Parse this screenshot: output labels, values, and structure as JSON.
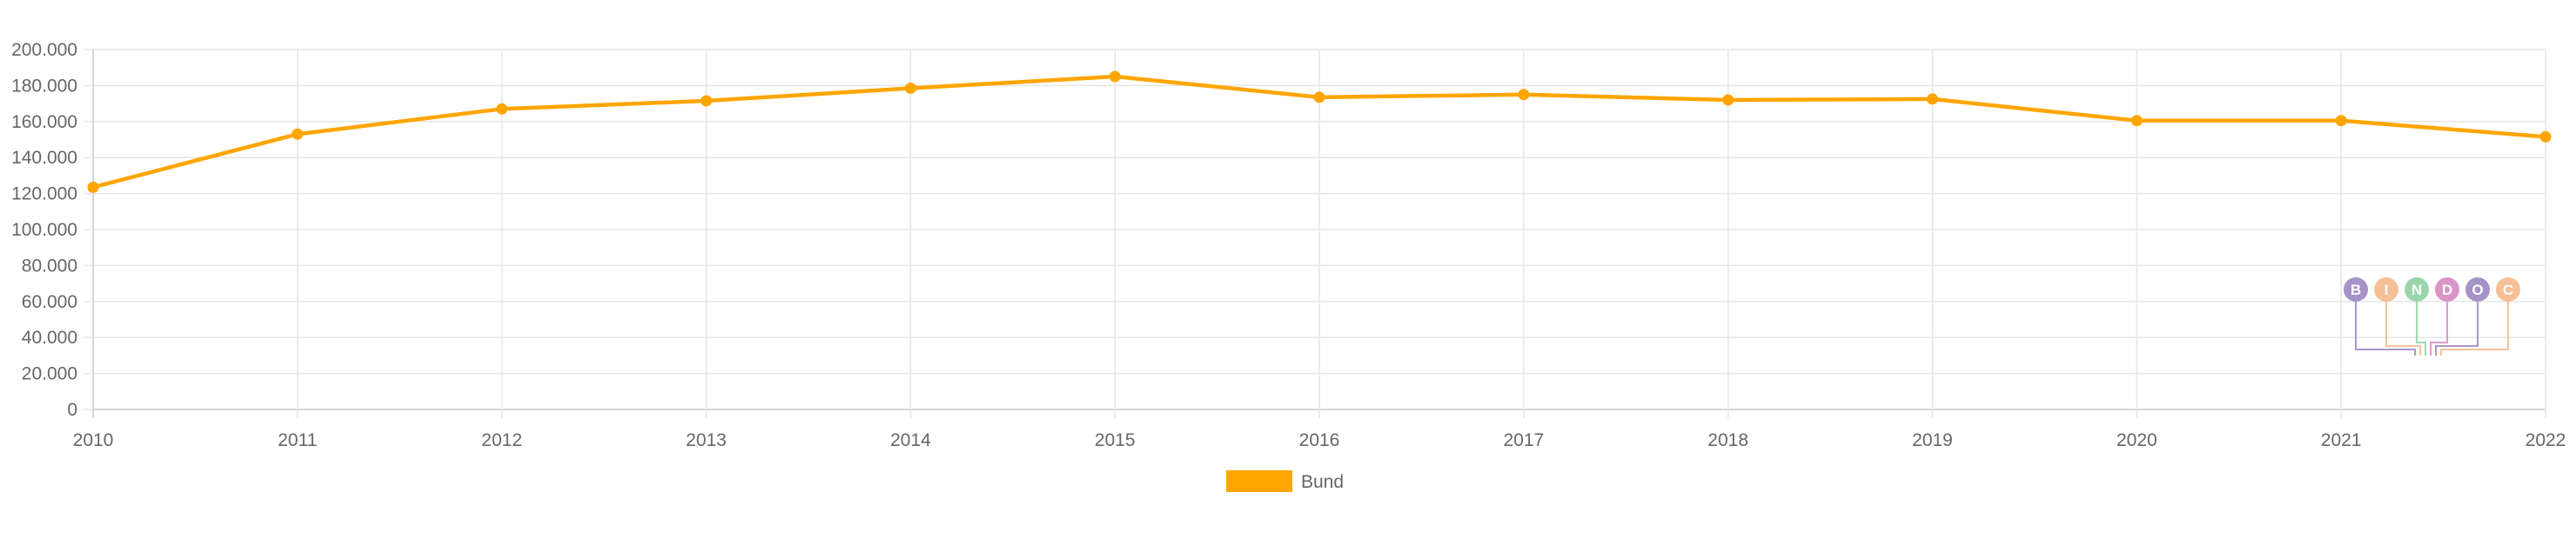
{
  "chart_data": {
    "type": "line",
    "x": [
      "2010",
      "2011",
      "2012",
      "2013",
      "2014",
      "2015",
      "2016",
      "2017",
      "2018",
      "2019",
      "2020",
      "2021",
      "2022"
    ],
    "series": [
      {
        "name": "Bund",
        "color": "#ffa500",
        "values": [
          123500,
          153000,
          167000,
          171500,
          178500,
          185000,
          173500,
          175000,
          172000,
          172500,
          160500,
          160500,
          151500
        ]
      }
    ],
    "y_ticks": [
      "0",
      "20.000",
      "40.000",
      "60.000",
      "80.000",
      "100.000",
      "120.000",
      "140.000",
      "160.000",
      "180.000",
      "200.000"
    ],
    "ylim": [
      0,
      200000
    ],
    "grid": true,
    "legend": "bottom-center",
    "title": "",
    "xlabel": "",
    "ylabel": ""
  },
  "watermark": {
    "letters": [
      "B",
      "I",
      "N",
      "D",
      "O",
      "C"
    ],
    "colors": [
      "#9b86c1",
      "#f4b98a",
      "#8fd0a3",
      "#d58ac0",
      "#9b86c1",
      "#f4b98a"
    ]
  }
}
